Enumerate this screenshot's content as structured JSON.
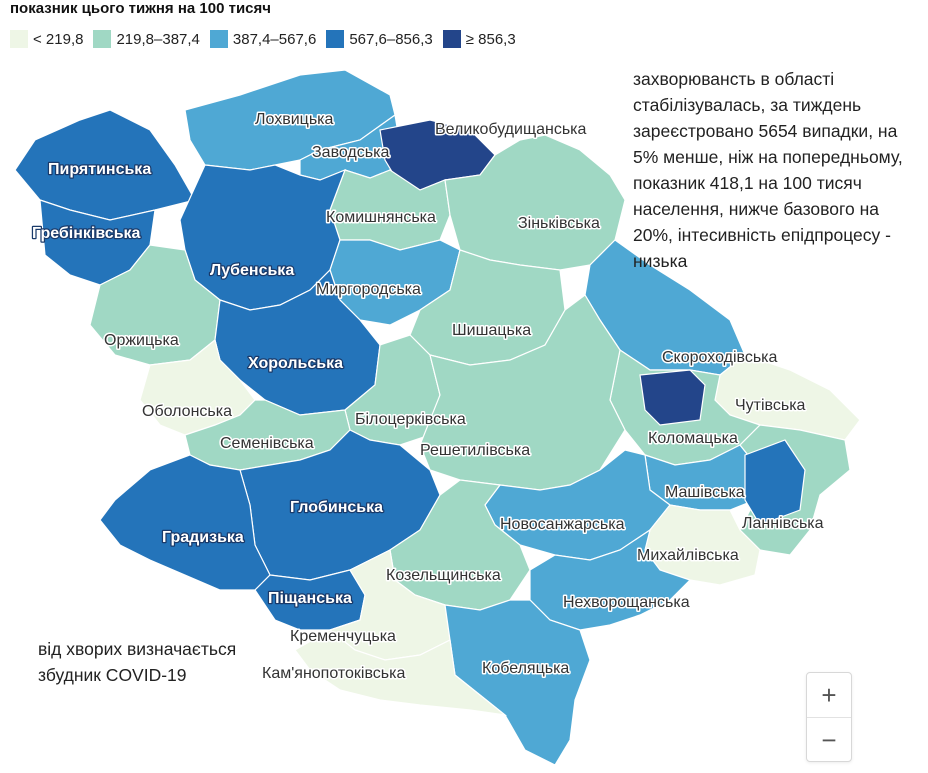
{
  "title": "показник цього тижня на 100 тисяч",
  "legend": [
    {
      "label": "< 219,8",
      "color": "#eef6e6"
    },
    {
      "label": "219,8–387,4",
      "color": "#a0d8c4"
    },
    {
      "label": "387,4–567,6",
      "color": "#4fa8d4"
    },
    {
      "label": "567,6–856,3",
      "color": "#2474ba"
    },
    {
      "label": "≥ 856,3",
      "color": "#23458a"
    }
  ],
  "annotation": "захворювансть в області стабілізувалась, за тиждень зареєстровано 5654 випадки, на 5% менше, ніж на попередньому, показник 418,1 на 100 тисяч населення, нижче базового на 20%, інтесивність епідпроцесу - низька",
  "note": "від хворих визначається збудник COVID-19",
  "zoom": {
    "in_label": "+",
    "out_label": "−"
  },
  "regions": [
    {
      "name": "Лохвицька",
      "class": 2
    },
    {
      "name": "Заводська",
      "class": 2
    },
    {
      "name": "Великобудищанська",
      "class": 4
    },
    {
      "name": "Пирятинська",
      "class": 3
    },
    {
      "name": "Гребінківська",
      "class": 3
    },
    {
      "name": "Комишнянська",
      "class": 1
    },
    {
      "name": "Зіньківська",
      "class": 1
    },
    {
      "name": "Лубенська",
      "class": 3
    },
    {
      "name": "Миргородська",
      "class": 2
    },
    {
      "name": "Оржицька",
      "class": 1
    },
    {
      "name": "Шишацька",
      "class": 1
    },
    {
      "name": "Скороходівська",
      "class": 2
    },
    {
      "name": "Хорольська",
      "class": 3
    },
    {
      "name": "Оболонська",
      "class": 0
    },
    {
      "name": "Чутівська",
      "class": 0
    },
    {
      "name": "Білоцерківська",
      "class": 1
    },
    {
      "name": "Коломацька",
      "class": 1
    },
    {
      "name": "Семенівська",
      "class": 1
    },
    {
      "name": "Решетилівська",
      "class": 1
    },
    {
      "name": "Машівська",
      "class": 2
    },
    {
      "name": "Глобинська",
      "class": 3
    },
    {
      "name": "Ланнівська",
      "class": 1
    },
    {
      "name": "Новосанжарська",
      "class": 2
    },
    {
      "name": "Градизька",
      "class": 3
    },
    {
      "name": "Михайлівська",
      "class": 0
    },
    {
      "name": "Козельщинська",
      "class": 1
    },
    {
      "name": "Нехворощанська",
      "class": 2
    },
    {
      "name": "Піщанська",
      "class": 3
    },
    {
      "name": "Кременчуцька",
      "class": 0
    },
    {
      "name": "Кобеляцька",
      "class": 2
    },
    {
      "name": "Кам'янопотоківська",
      "class": 0
    }
  ]
}
